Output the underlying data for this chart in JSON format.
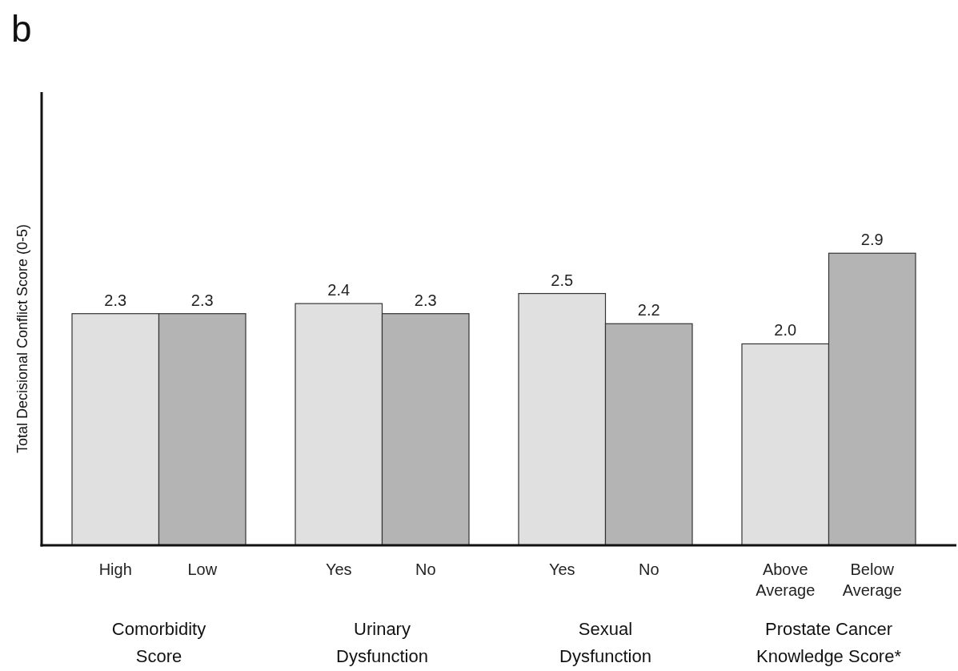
{
  "chart_data": {
    "type": "bar",
    "title": "b",
    "ylabel": "Total Decisional Conflict Score (0-5)",
    "categories": [
      "High",
      "Low",
      "Yes",
      "No",
      "Yes",
      "No",
      "Above Average",
      "Below Average"
    ],
    "values": [
      2.3,
      2.3,
      2.4,
      2.3,
      2.5,
      2.2,
      2.0,
      2.9
    ],
    "colors": [
      "#e0e0e0",
      "#b4b4b4",
      "#e0e0e0",
      "#b4b4b4",
      "#e0e0e0",
      "#b4b4b4",
      "#e0e0e0",
      "#b4b4b4"
    ],
    "ylim": [
      0,
      4.5
    ],
    "value_labels": [
      "2.3",
      "2.3",
      "2.4",
      "2.3",
      "2.5",
      "2.2",
      "2.0",
      "2.9"
    ],
    "annotations": [
      "Comorbidity Score",
      "Urinary Dysfunction",
      "Sexual Dysfunction",
      "Prostate Cancer Knowledge Score*"
    ]
  }
}
